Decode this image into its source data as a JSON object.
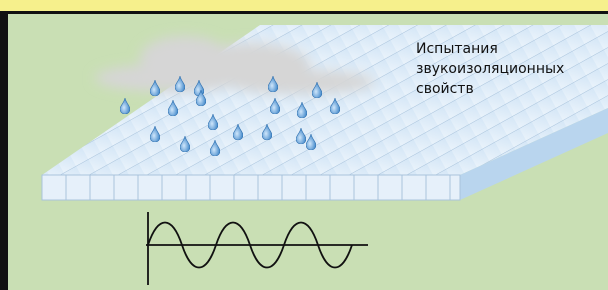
{
  "label": {
    "lines": [
      "Испытания",
      "звукоизоляционных",
      "свойств"
    ]
  }
}
